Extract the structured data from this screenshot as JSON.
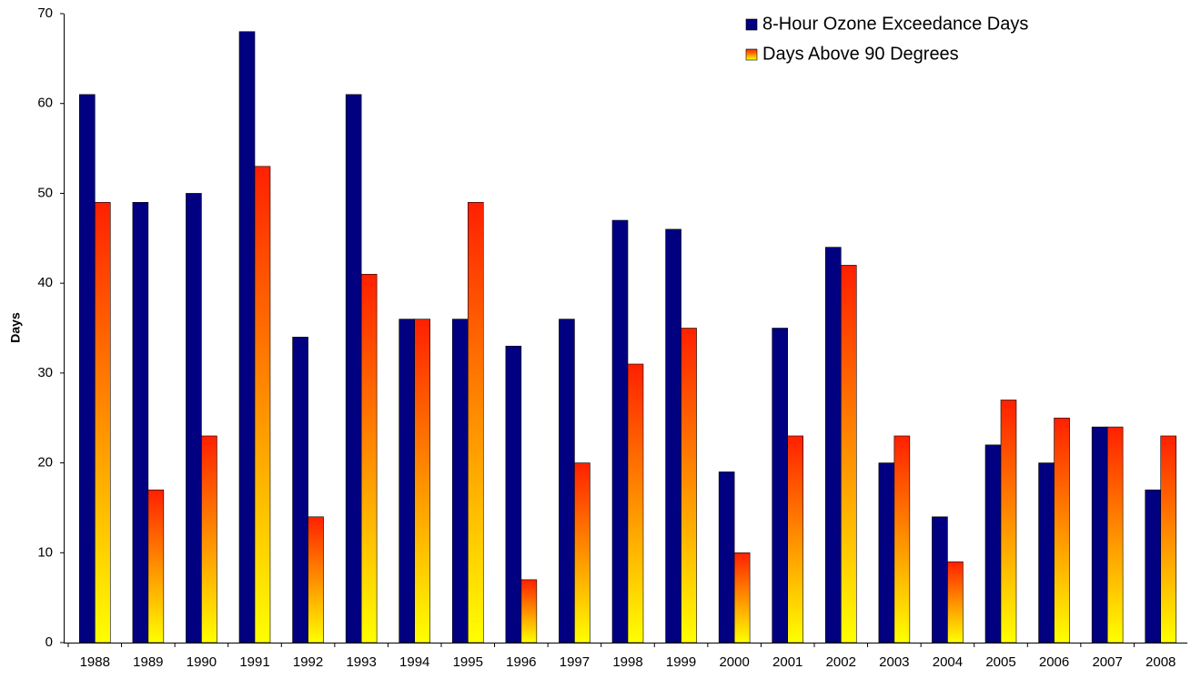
{
  "chart_data": {
    "type": "bar",
    "y_label": "Days",
    "categories": [
      "1988",
      "1989",
      "1990",
      "1991",
      "1992",
      "1993",
      "1994",
      "1995",
      "1996",
      "1997",
      "1998",
      "1999",
      "2000",
      "2001",
      "2002",
      "2003",
      "2004",
      "2005",
      "2006",
      "2007",
      "2008"
    ],
    "series": [
      {
        "name": "8-Hour Ozone Exceedance Days",
        "color": "#000080",
        "values": [
          61,
          49,
          50,
          68,
          34,
          61,
          36,
          36,
          33,
          36,
          47,
          46,
          19,
          35,
          44,
          20,
          14,
          22,
          20,
          24,
          17
        ]
      },
      {
        "name": "Days Above 90 Degrees",
        "color": "#ff2000",
        "gradient_to": "#ffff00",
        "values": [
          49,
          17,
          23,
          53,
          14,
          41,
          36,
          49,
          7,
          20,
          31,
          35,
          10,
          23,
          42,
          23,
          9,
          27,
          25,
          24,
          23
        ]
      }
    ],
    "ylim": [
      0,
      70
    ],
    "yticks": [
      0,
      10,
      20,
      30,
      40,
      50,
      60,
      70
    ],
    "grid": false,
    "legend": "top-right"
  }
}
